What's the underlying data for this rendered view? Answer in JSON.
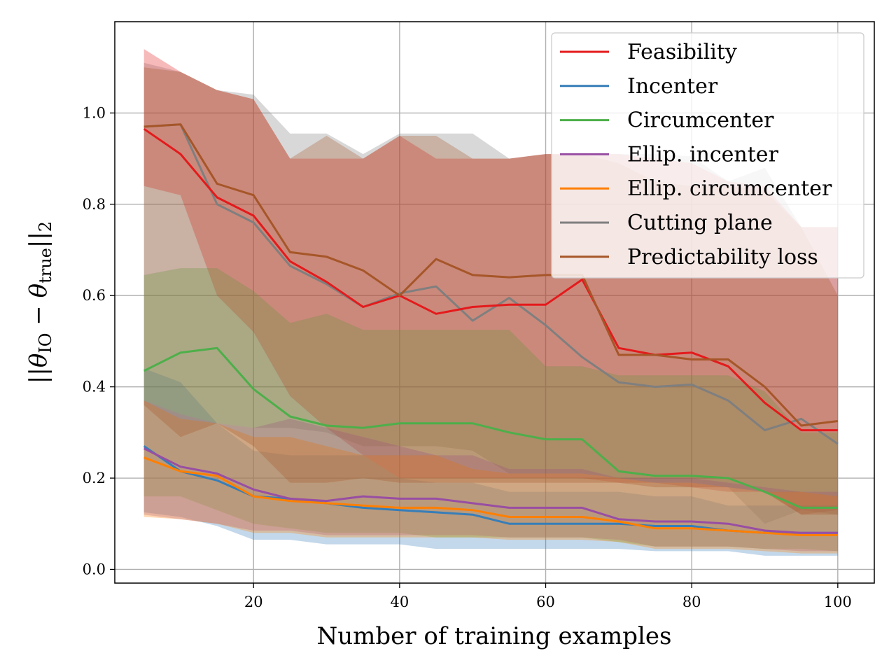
{
  "chart_data": {
    "type": "line",
    "title": "",
    "xlabel": "Number of training examples",
    "ylabel": "||θ_IO − θ_true||_2",
    "xlim": [
      1,
      105
    ],
    "ylim": [
      -0.03,
      1.2
    ],
    "grid": true,
    "legend_position": "top-right",
    "x_ticks": [
      20,
      40,
      60,
      80,
      100
    ],
    "y_ticks": [
      0.0,
      0.2,
      0.4,
      0.6,
      0.8,
      1.0
    ],
    "x_tick_labels": [
      "20",
      "40",
      "60",
      "80",
      "100"
    ],
    "y_tick_labels": [
      "0.0",
      "0.2",
      "0.4",
      "0.6",
      "0.8",
      "1.0"
    ],
    "x": [
      5,
      10,
      15,
      20,
      25,
      30,
      35,
      40,
      45,
      50,
      55,
      60,
      65,
      70,
      75,
      80,
      85,
      90,
      95,
      100
    ],
    "series": [
      {
        "name": "Cutting plane",
        "color": "#7f7f7f",
        "legend_order": 5,
        "values": [
          0.97,
          0.975,
          0.8,
          0.76,
          0.665,
          0.625,
          0.575,
          0.605,
          0.62,
          0.545,
          0.595,
          0.535,
          0.465,
          0.41,
          0.4,
          0.405,
          0.37,
          0.305,
          0.33,
          0.275
        ],
        "lower": [
          0.37,
          0.34,
          0.32,
          0.31,
          0.31,
          0.3,
          0.27,
          0.27,
          0.27,
          0.26,
          0.21,
          0.21,
          0.21,
          0.2,
          0.19,
          0.19,
          0.18,
          0.1,
          0.13,
          0.12
        ],
        "upper": [
          1.11,
          1.09,
          1.05,
          1.04,
          0.955,
          0.955,
          0.91,
          0.955,
          0.955,
          0.955,
          0.9,
          0.91,
          0.91,
          0.91,
          0.91,
          0.905,
          0.85,
          0.88,
          0.75,
          0.75
        ]
      },
      {
        "name": "Feasibility",
        "color": "#e41a1c",
        "legend_order": 0,
        "values": [
          0.965,
          0.91,
          0.815,
          0.775,
          0.675,
          0.63,
          0.575,
          0.6,
          0.56,
          0.575,
          0.58,
          0.58,
          0.635,
          0.485,
          0.47,
          0.475,
          0.445,
          0.365,
          0.305,
          0.305
        ],
        "lower": [
          0.84,
          0.82,
          0.6,
          0.52,
          0.38,
          0.31,
          0.25,
          0.2,
          0.2,
          0.2,
          0.2,
          0.2,
          0.2,
          0.19,
          0.19,
          0.18,
          0.17,
          0.17,
          0.12,
          0.13
        ],
        "upper": [
          1.14,
          1.09,
          1.05,
          1.03,
          0.9,
          0.9,
          0.9,
          0.95,
          0.9,
          0.9,
          0.9,
          0.91,
          0.91,
          0.91,
          0.9,
          0.89,
          0.85,
          0.84,
          0.75,
          0.75
        ]
      },
      {
        "name": "Incenter",
        "color": "#377eb8",
        "legend_order": 1,
        "values": [
          0.27,
          0.215,
          0.195,
          0.16,
          0.155,
          0.145,
          0.135,
          0.13,
          0.125,
          0.12,
          0.1,
          0.1,
          0.1,
          0.1,
          0.095,
          0.095,
          0.085,
          0.08,
          0.08,
          0.08
        ],
        "lower": [
          0.125,
          0.115,
          0.095,
          0.065,
          0.065,
          0.055,
          0.055,
          0.055,
          0.045,
          0.045,
          0.045,
          0.045,
          0.045,
          0.045,
          0.04,
          0.04,
          0.04,
          0.03,
          0.03,
          0.03
        ],
        "upper": [
          0.44,
          0.41,
          0.32,
          0.26,
          0.25,
          0.25,
          0.25,
          0.2,
          0.19,
          0.19,
          0.17,
          0.17,
          0.17,
          0.17,
          0.16,
          0.16,
          0.14,
          0.14,
          0.14,
          0.14
        ]
      },
      {
        "name": "Circumcenter",
        "color": "#4daf4a",
        "legend_order": 2,
        "values": [
          0.435,
          0.475,
          0.485,
          0.395,
          0.335,
          0.315,
          0.31,
          0.32,
          0.32,
          0.32,
          0.3,
          0.285,
          0.285,
          0.215,
          0.205,
          0.205,
          0.2,
          0.17,
          0.135,
          0.135
        ],
        "lower": [
          0.16,
          0.16,
          0.13,
          0.1,
          0.09,
          0.08,
          0.08,
          0.08,
          0.07,
          0.07,
          0.07,
          0.07,
          0.07,
          0.06,
          0.05,
          0.05,
          0.05,
          0.045,
          0.045,
          0.04
        ],
        "upper": [
          0.645,
          0.66,
          0.66,
          0.61,
          0.54,
          0.56,
          0.525,
          0.525,
          0.525,
          0.525,
          0.525,
          0.445,
          0.445,
          0.425,
          0.425,
          0.425,
          0.425,
          0.39,
          0.3,
          0.3
        ]
      },
      {
        "name": "Ellip. incenter",
        "color": "#984ea3",
        "legend_order": 3,
        "values": [
          0.265,
          0.225,
          0.21,
          0.175,
          0.155,
          0.15,
          0.16,
          0.155,
          0.155,
          0.145,
          0.135,
          0.135,
          0.135,
          0.11,
          0.105,
          0.105,
          0.1,
          0.085,
          0.08,
          0.08
        ],
        "lower": [
          0.12,
          0.11,
          0.1,
          0.085,
          0.085,
          0.075,
          0.075,
          0.075,
          0.075,
          0.075,
          0.07,
          0.07,
          0.07,
          0.065,
          0.05,
          0.05,
          0.05,
          0.045,
          0.04,
          0.04
        ],
        "upper": [
          0.37,
          0.34,
          0.32,
          0.31,
          0.33,
          0.31,
          0.29,
          0.27,
          0.25,
          0.25,
          0.22,
          0.22,
          0.22,
          0.2,
          0.2,
          0.2,
          0.19,
          0.18,
          0.17,
          0.17
        ]
      },
      {
        "name": "Ellip. circumcenter",
        "color": "#ff7f00",
        "legend_order": 4,
        "values": [
          0.245,
          0.215,
          0.205,
          0.16,
          0.15,
          0.145,
          0.14,
          0.135,
          0.135,
          0.13,
          0.115,
          0.115,
          0.115,
          0.105,
          0.09,
          0.09,
          0.085,
          0.08,
          0.075,
          0.075
        ],
        "lower": [
          0.115,
          0.11,
          0.1,
          0.08,
          0.08,
          0.07,
          0.07,
          0.07,
          0.07,
          0.07,
          0.065,
          0.065,
          0.065,
          0.06,
          0.045,
          0.045,
          0.045,
          0.04,
          0.035,
          0.035
        ],
        "upper": [
          0.37,
          0.33,
          0.32,
          0.29,
          0.29,
          0.27,
          0.25,
          0.25,
          0.25,
          0.22,
          0.21,
          0.21,
          0.21,
          0.2,
          0.19,
          0.19,
          0.18,
          0.17,
          0.17,
          0.16
        ]
      },
      {
        "name": "Predictability loss",
        "color": "#a65628",
        "legend_order": 6,
        "values": [
          0.97,
          0.975,
          0.845,
          0.82,
          0.695,
          0.685,
          0.655,
          0.6,
          0.68,
          0.645,
          0.64,
          0.645,
          0.645,
          0.47,
          0.47,
          0.46,
          0.46,
          0.4,
          0.315,
          0.325
        ],
        "lower": [
          0.36,
          0.29,
          0.32,
          0.27,
          0.19,
          0.19,
          0.2,
          0.19,
          0.19,
          0.19,
          0.19,
          0.19,
          0.19,
          0.19,
          0.18,
          0.18,
          0.18,
          0.17,
          0.12,
          0.12
        ],
        "upper": [
          1.1,
          1.09,
          1.05,
          1.03,
          0.9,
          0.95,
          0.9,
          0.95,
          0.95,
          0.9,
          0.9,
          0.91,
          0.91,
          0.89,
          0.85,
          0.84,
          0.84,
          0.83,
          0.75,
          0.6
        ]
      }
    ]
  }
}
